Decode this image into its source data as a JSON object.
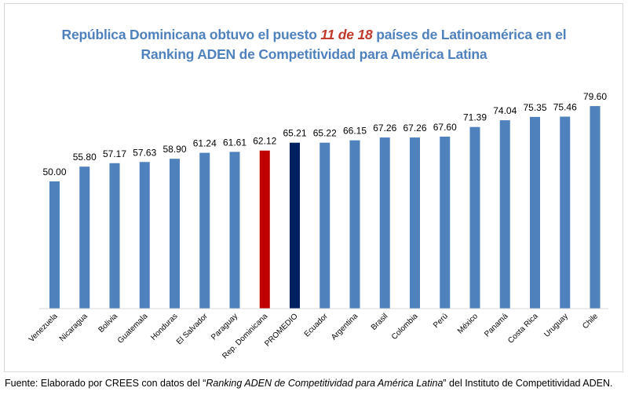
{
  "title": {
    "part1": "República Dominicana obtuvo el puesto ",
    "highlight": "11 de 18",
    "part2": " países de Latinoamérica en el",
    "line2": "Ranking ADEN de Competitividad para América Latina"
  },
  "source": {
    "prefix": "Fuente: Elaborado por CREES con datos del “",
    "italic": "Ranking ADEN de Competitividad para América Latina",
    "suffix": "” del Instituto de Competitividad ADEN."
  },
  "colors": {
    "default_bar": "#4F81BD",
    "highlight_bar": "#C00000",
    "average_bar": "#002060",
    "title": "#4F81BD",
    "title_highlight": "#C0392B",
    "axis": "#d9d9d9"
  },
  "chart_data": {
    "type": "bar",
    "title": "República Dominicana obtuvo el puesto 11 de 18 países de Latinoamérica en el Ranking ADEN de Competitividad para América Latina",
    "xlabel": "",
    "ylabel": "",
    "ylim": [
      0,
      80
    ],
    "grid": false,
    "legend": "none",
    "categories": [
      "Venezuela",
      "Nicaragua",
      "Bolivia",
      "Guatemala",
      "Honduras",
      "El Salvador",
      "Paraguay",
      "Rep. Dominicana",
      "PROMEDIO",
      "Ecuador",
      "Argentina",
      "Brasil",
      "Colombia",
      "Perú",
      "México",
      "Panamá",
      "Costa Rica",
      "Uruguay",
      "Chile"
    ],
    "values": [
      50.0,
      55.8,
      57.17,
      57.63,
      58.9,
      61.24,
      61.61,
      62.12,
      65.21,
      65.22,
      66.15,
      67.26,
      67.26,
      67.6,
      71.39,
      74.04,
      75.35,
      75.46,
      79.6
    ],
    "value_labels": [
      "50.00",
      "55.80",
      "57.17",
      "57.63",
      "58.90",
      "61.24",
      "61.61",
      "62.12",
      "65.21",
      "65.22",
      "66.15",
      "67.26",
      "67.26",
      "67.60",
      "71.39",
      "74.04",
      "75.35",
      "75.46",
      "79.60"
    ],
    "bar_kind": [
      "default",
      "default",
      "default",
      "default",
      "default",
      "default",
      "default",
      "highlight",
      "average",
      "default",
      "default",
      "default",
      "default",
      "default",
      "default",
      "default",
      "default",
      "default",
      "default"
    ]
  }
}
